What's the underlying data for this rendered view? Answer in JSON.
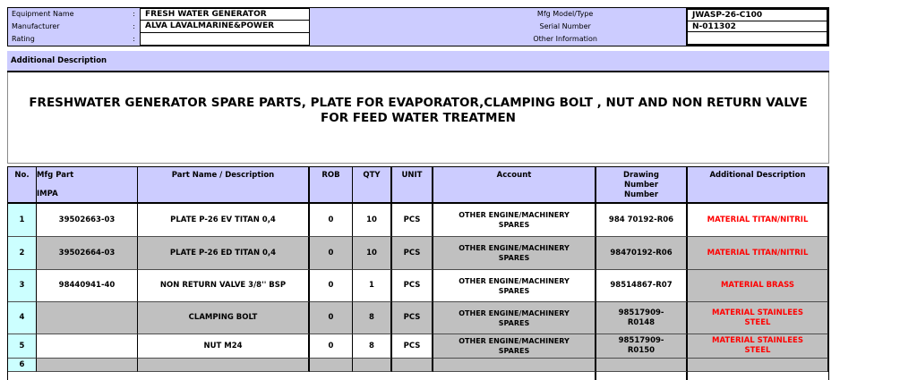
{
  "colors": {
    "band_lavender": "#CCCCFF",
    "row_number_cyan": "#CCFFFF",
    "row_gray": "#C0C0C0",
    "alert_red": "#FF0000"
  },
  "top_form": {
    "colon": ":",
    "left_fields": [
      {
        "label": "Equipment Name",
        "value": "FRESH WATER GENERATOR"
      },
      {
        "label": "Manufacturer",
        "value": "ALVA LAVALMARINE&POWER"
      },
      {
        "label": "Rating",
        "value": ""
      }
    ],
    "right_fields": [
      {
        "label": "Mfg Model/Type",
        "value": "JWASP-26-C100"
      },
      {
        "label": "Serial Number",
        "value": "N-011302"
      },
      {
        "label": "Other Information",
        "value": ""
      }
    ]
  },
  "section": {
    "additional_description_label": "Additional Description"
  },
  "title": "FRESHWATER GENERATOR SPARE PARTS, PLATE FOR EVAPORATOR,CLAMPING BOLT , NUT AND NON RETURN VALVE\nFOR FEED WATER TREATMEN",
  "table": {
    "headers": {
      "no": "No.",
      "mfg_line1": "Mfg Part",
      "mfg_line2": "IMPA",
      "part_name": "Part Name / Description",
      "rob": "ROB",
      "qty": "QTY",
      "unit": "UNIT",
      "account": "Account",
      "drawing": "Drawing\nNumber\nNumber",
      "additional": "Additional Description"
    },
    "rows": [
      {
        "no": "1",
        "mfg": "39502663-03",
        "part": "PLATE P-26 EV TITAN 0,4",
        "rob": "0",
        "qty": "10",
        "unit": "PCS",
        "account": "OTHER ENGINE/MACHINERY\nSPARES",
        "drawing": "984 70192-R06",
        "additional": "MATERIAL TITAN/NITRIL"
      },
      {
        "no": "2",
        "mfg": "39502664-03",
        "part": "PLATE P-26 ED TITAN 0,4",
        "rob": "0",
        "qty": "10",
        "unit": "PCS",
        "account": "OTHER ENGINE/MACHINERY\nSPARES",
        "drawing": "98470192-R06",
        "additional": "MATERIAL TITAN/NITRIL"
      },
      {
        "no": "3",
        "mfg": "98440941-40",
        "part": "NON RETURN VALVE 3/8'' BSP",
        "rob": "0",
        "qty": "1",
        "unit": "PCS",
        "account": "OTHER ENGINE/MACHINERY\nSPARES",
        "drawing": "98514867-R07",
        "additional": "MATERIAL BRASS"
      },
      {
        "no": "4",
        "mfg": "",
        "part": "CLAMPING BOLT",
        "rob": "0",
        "qty": "8",
        "unit": "PCS",
        "account": "OTHER ENGINE/MACHINERY\nSPARES",
        "drawing": "98517909-\nR0148",
        "additional": "MATERIAL STAINLEES\nSTEEL"
      },
      {
        "no": "5",
        "mfg": "",
        "part": "NUT M24",
        "rob": "0",
        "qty": "8",
        "unit": "PCS",
        "account": "OTHER ENGINE/MACHINERY\nSPARES",
        "drawing": "98517909-\nR0150",
        "additional": "MATERIAL STAINLEES\nSTEEL"
      },
      {
        "no": "6",
        "mfg": "",
        "part": "",
        "rob": "",
        "qty": "",
        "unit": "",
        "account": "",
        "drawing": "",
        "additional": ""
      }
    ]
  }
}
